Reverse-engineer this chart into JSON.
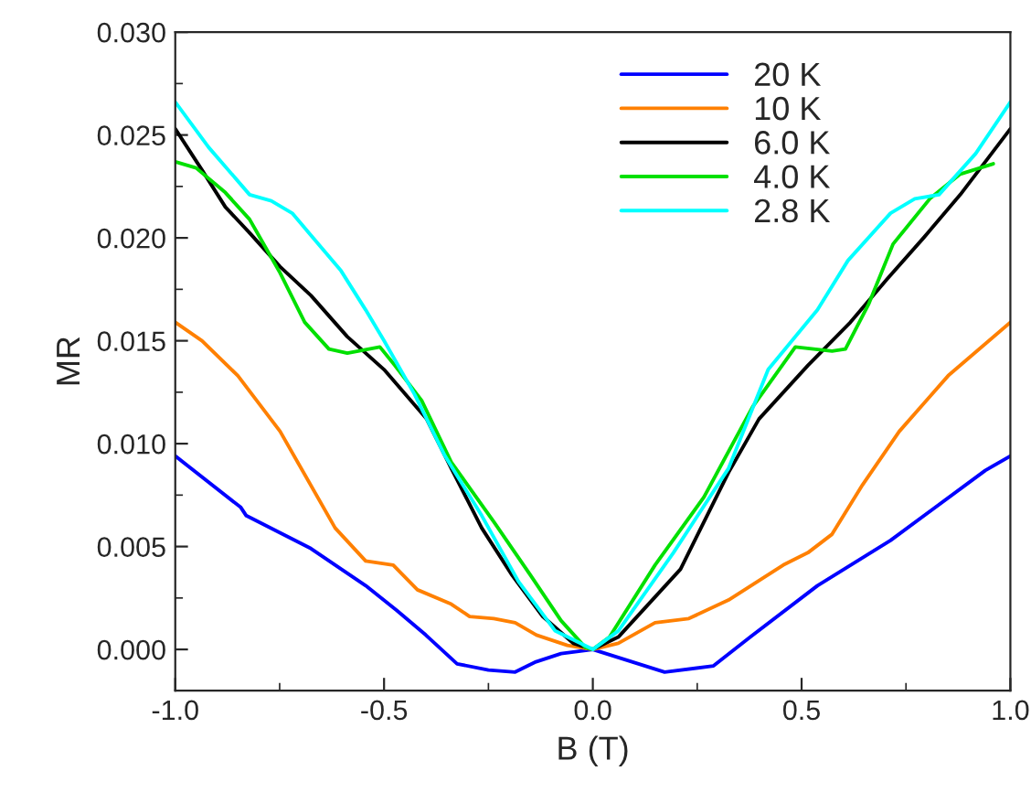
{
  "chart_data": {
    "type": "line",
    "xlabel": "B (T)",
    "ylabel": "MR",
    "xlim": [
      -1.0,
      1.0
    ],
    "ylim": [
      -0.002,
      0.03
    ],
    "xticks": [
      {
        "value": -1.0,
        "label": "-1.0"
      },
      {
        "value": -0.5,
        "label": "-0.5"
      },
      {
        "value": 0.0,
        "label": "0.0"
      },
      {
        "value": 0.5,
        "label": "0.5"
      },
      {
        "value": 1.0,
        "label": "1.0"
      }
    ],
    "yticks": [
      {
        "value": 0.0,
        "label": "0.000"
      },
      {
        "value": 0.005,
        "label": "0.005"
      },
      {
        "value": 0.01,
        "label": "0.010"
      },
      {
        "value": 0.015,
        "label": "0.015"
      },
      {
        "value": 0.02,
        "label": "0.020"
      },
      {
        "value": 0.025,
        "label": "0.025"
      },
      {
        "value": 0.03,
        "label": "0.030"
      }
    ],
    "grid": false,
    "legend": "top right",
    "marker": "none",
    "line_style": "solid",
    "series": [
      {
        "name": "20 K",
        "color": "#0000ff",
        "x": [
          -1.0,
          -0.843,
          -0.83,
          -0.675,
          -0.544,
          -0.47,
          -0.4,
          -0.325,
          -0.25,
          -0.186,
          -0.136,
          -0.076,
          0.0,
          0.172,
          0.289,
          0.377,
          0.538,
          0.713,
          0.94,
          1.0
        ],
        "values": [
          0.0094,
          0.0069,
          0.0065,
          0.0049,
          0.0031,
          0.0019,
          0.0007,
          -0.0007,
          -0.001,
          -0.0011,
          -0.0006,
          -0.0002,
          0.0,
          -0.0011,
          -0.0008,
          0.0006,
          0.0031,
          0.0053,
          0.0087,
          0.0094
        ]
      },
      {
        "name": "10 K",
        "color": "#ff8000",
        "x": [
          -1.0,
          -0.936,
          -0.85,
          -0.749,
          -0.617,
          -0.544,
          -0.478,
          -0.42,
          -0.339,
          -0.295,
          -0.237,
          -0.186,
          -0.135,
          -0.061,
          0.0,
          0.061,
          0.149,
          0.23,
          0.325,
          0.456,
          0.515,
          0.573,
          0.646,
          0.734,
          0.851,
          1.0
        ],
        "values": [
          0.0159,
          0.015,
          0.0133,
          0.0106,
          0.0059,
          0.0043,
          0.0041,
          0.0029,
          0.0022,
          0.0016,
          0.0015,
          0.0013,
          0.0007,
          0.0002,
          0.0,
          0.0003,
          0.0013,
          0.0015,
          0.0024,
          0.0041,
          0.0047,
          0.0056,
          0.008,
          0.0106,
          0.0133,
          0.0159
        ]
      },
      {
        "name": "6.0 K",
        "color": "#000000",
        "x": [
          -1.0,
          -0.936,
          -0.88,
          -0.82,
          -0.749,
          -0.675,
          -0.588,
          -0.5,
          -0.398,
          -0.339,
          -0.266,
          -0.193,
          -0.12,
          -0.047,
          0.0,
          0.061,
          0.21,
          0.325,
          0.398,
          0.515,
          0.617,
          0.705,
          0.792,
          0.88,
          1.0
        ],
        "values": [
          0.0253,
          0.0233,
          0.0215,
          0.0202,
          0.0186,
          0.0172,
          0.0152,
          0.0136,
          0.0112,
          0.0088,
          0.0059,
          0.0036,
          0.0016,
          0.0003,
          0.0,
          0.0006,
          0.0039,
          0.0086,
          0.0112,
          0.0138,
          0.0159,
          0.018,
          0.02,
          0.0221,
          0.0253
        ]
      },
      {
        "name": "4.0 K",
        "color": "#00e000",
        "x": [
          -1.0,
          -0.95,
          -0.88,
          -0.822,
          -0.749,
          -0.69,
          -0.632,
          -0.588,
          -0.51,
          -0.474,
          -0.41,
          -0.339,
          -0.237,
          -0.149,
          -0.076,
          -0.018,
          0.0,
          0.04,
          0.149,
          0.266,
          0.383,
          0.485,
          0.573,
          0.605,
          0.661,
          0.719,
          0.807,
          0.88,
          0.959
        ],
        "values": [
          0.0237,
          0.0234,
          0.0222,
          0.0209,
          0.0183,
          0.0159,
          0.0146,
          0.0144,
          0.0147,
          0.0138,
          0.0121,
          0.0091,
          0.0062,
          0.0036,
          0.0014,
          0.0001,
          0.0,
          0.0006,
          0.0041,
          0.0074,
          0.0118,
          0.0147,
          0.0145,
          0.0146,
          0.0168,
          0.0197,
          0.0219,
          0.0231,
          0.0236
        ]
      },
      {
        "name": "2.8 K",
        "color": "#00ffff",
        "x": [
          -1.0,
          -0.92,
          -0.822,
          -0.77,
          -0.72,
          -0.603,
          -0.544,
          -0.5,
          -0.427,
          -0.354,
          -0.266,
          -0.178,
          -0.09,
          0.0,
          0.061,
          0.193,
          0.325,
          0.42,
          0.538,
          0.611,
          0.713,
          0.771,
          0.829,
          0.917,
          1.0
        ],
        "values": [
          0.0266,
          0.0244,
          0.0221,
          0.0218,
          0.0212,
          0.0184,
          0.0165,
          0.015,
          0.0124,
          0.0094,
          0.0065,
          0.0033,
          0.0009,
          0.0,
          0.0009,
          0.0047,
          0.0088,
          0.0136,
          0.0165,
          0.0189,
          0.0212,
          0.0219,
          0.0221,
          0.0241,
          0.0266
        ]
      }
    ]
  }
}
